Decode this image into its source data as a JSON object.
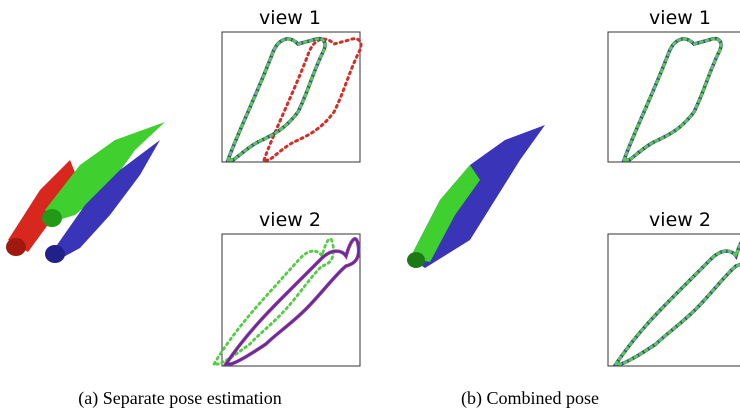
{
  "panel_a": {
    "view1_label": "view 1",
    "view2_label": "view 2",
    "caption": "(a) Separate pose estimation"
  },
  "panel_b": {
    "view1_label": "view 1",
    "view2_label": "view 2",
    "caption": "(b) Combined pose"
  }
}
